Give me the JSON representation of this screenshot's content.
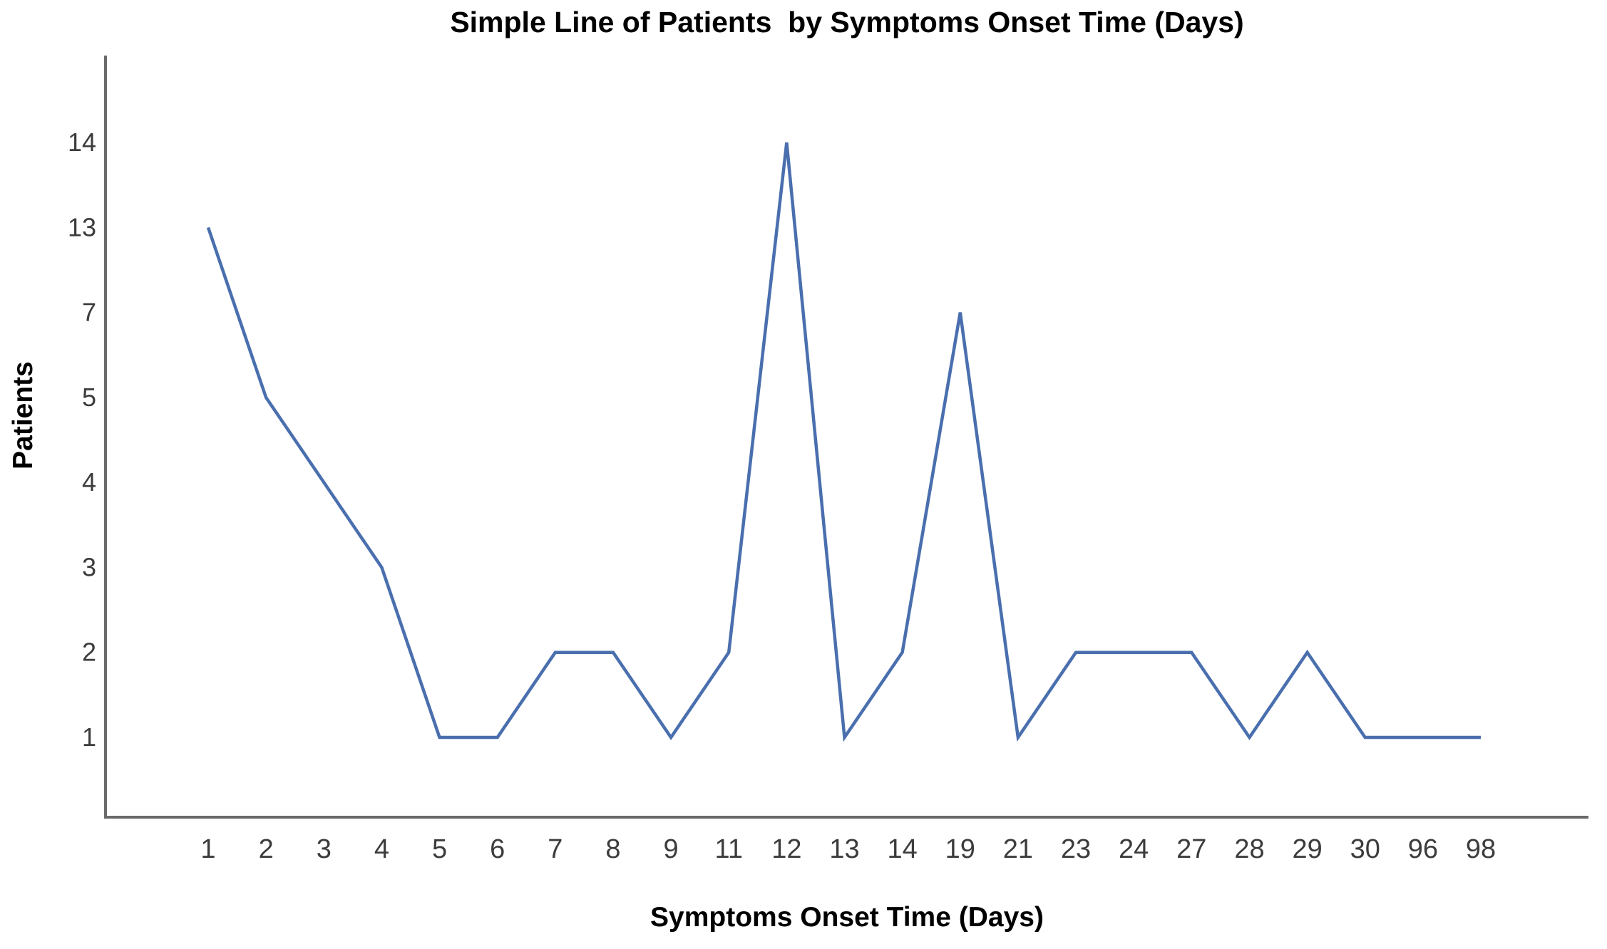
{
  "page": {
    "background": "#ffffff"
  },
  "chart_data": {
    "type": "line",
    "title": "Simple Line of Patients  by Symptoms Onset Time (Days)",
    "xlabel": "Symptoms Onset Time (Days)",
    "ylabel": "Patients",
    "categories": [
      "1",
      "2",
      "3",
      "4",
      "5",
      "6",
      "7",
      "8",
      "9",
      "11",
      "12",
      "13",
      "14",
      "19",
      "21",
      "23",
      "24",
      "27",
      "28",
      "29",
      "30",
      "96",
      "98"
    ],
    "series": [
      {
        "name": "Patients",
        "values": [
          13,
          5,
          4,
          3,
          1,
          1,
          2,
          2,
          1,
          2,
          14,
          1,
          2,
          7,
          1,
          2,
          2,
          2,
          1,
          2,
          1,
          1,
          1
        ]
      }
    ],
    "y_axis": {
      "type": "ordinal",
      "ticks": [
        "1",
        "2",
        "3",
        "4",
        "5",
        "7",
        "13",
        "14"
      ],
      "note": "ordinal axis: observed patient counts spaced evenly"
    },
    "x_axis": {
      "type": "category"
    },
    "grid": false,
    "legend_position": "none",
    "colors": {
      "line": "#4a6fae",
      "axis": "#6a6a6a",
      "tick_text": "#3c3c3c",
      "title_text": "#000000"
    }
  }
}
